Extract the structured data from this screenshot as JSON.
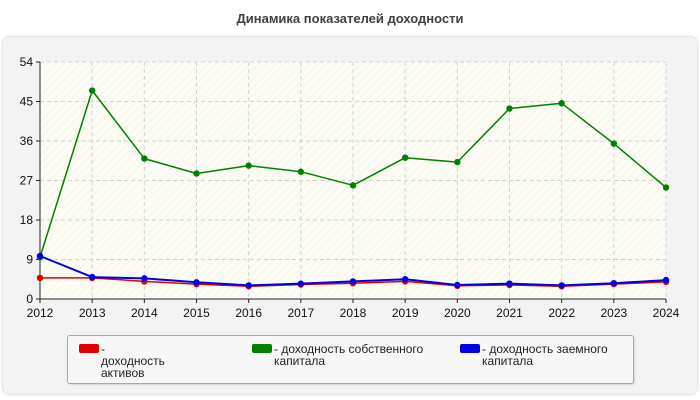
{
  "chart_data": {
    "type": "line",
    "title": "Динамика показателей доходности",
    "x": [
      "2012",
      "2013",
      "2014",
      "2015",
      "2016",
      "2017",
      "2018",
      "2019",
      "2020",
      "2021",
      "2022",
      "2023",
      "2024"
    ],
    "ylim": [
      0,
      54
    ],
    "yticks": [
      0,
      9,
      18,
      27,
      36,
      45,
      54
    ],
    "grid": true,
    "legend_position": "bottom",
    "series": [
      {
        "name": "- доходность активов",
        "color": "#e00000",
        "values": [
          4.8,
          4.8,
          4.0,
          3.4,
          2.9,
          3.3,
          3.6,
          4.0,
          3.0,
          3.2,
          2.9,
          3.4,
          3.9
        ]
      },
      {
        "name": "- доходность собственного капитала",
        "color": "#008000",
        "values": [
          9.5,
          47.5,
          32.0,
          28.6,
          30.4,
          29.0,
          25.9,
          32.2,
          31.2,
          43.4,
          44.6,
          35.4,
          25.4
        ]
      },
      {
        "name": "- доходность заемного капитала",
        "color": "#0000e0",
        "values": [
          9.8,
          5.0,
          4.7,
          3.8,
          3.1,
          3.5,
          4.0,
          4.5,
          3.2,
          3.5,
          3.1,
          3.6,
          4.3
        ]
      }
    ]
  }
}
